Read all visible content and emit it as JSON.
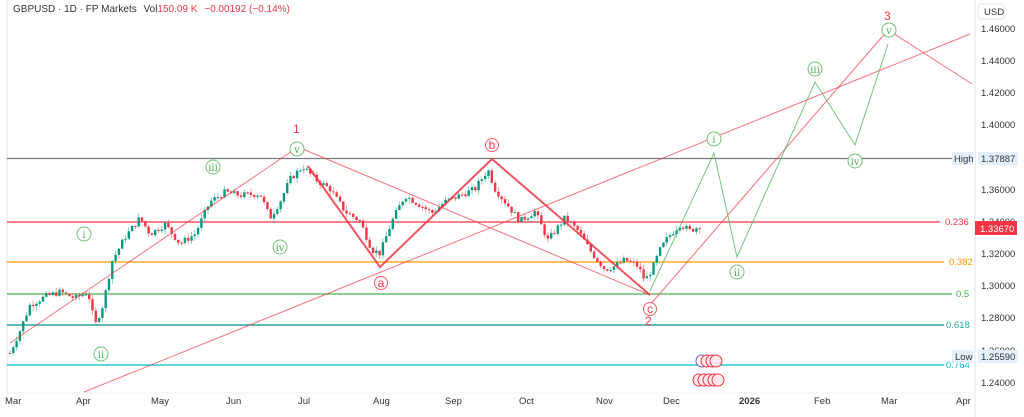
{
  "header": {
    "symbol": "GBPUSD",
    "timeframe": "1D",
    "broker": "FP Markets",
    "vol_label": "Vol",
    "vol_value": "150.09 K",
    "change": "−0.00192 (−0.14%)",
    "full": "GBPUSD · 1D · FP Markets"
  },
  "price_axis": {
    "currency": "USD",
    "ticks": [
      "1.46000",
      "1.44000",
      "1.42000",
      "1.40000",
      "1.36000",
      "1.34000",
      "1.32000",
      "1.30000",
      "1.28000",
      "1.26000",
      "1.24000"
    ],
    "high_label": "High",
    "high_value": "1.37887",
    "low_label": "Low",
    "low_value": "1.25590",
    "last_price": "1.33670"
  },
  "time_axis": {
    "ticks": [
      "Mar",
      "Apr",
      "May",
      "Jun",
      "Jul",
      "Aug",
      "Sep",
      "Oct",
      "Nov",
      "Dec",
      "2026",
      "Feb",
      "Mar",
      "Apr"
    ]
  },
  "fib_levels": [
    {
      "label": "0.236",
      "price": 1.34,
      "color": "#f23645"
    },
    {
      "label": "0.382",
      "price": 1.315,
      "color": "#ff9800"
    },
    {
      "label": "0.5",
      "price": 1.296,
      "color": "#4caf50"
    },
    {
      "label": "0.618",
      "price": 1.276,
      "color": "#26a69a"
    },
    {
      "label": "0.764",
      "price": 1.251,
      "color": "#00bcd4"
    }
  ],
  "wave_labels": {
    "primary": [
      "1",
      "2",
      "3"
    ],
    "corrective": [
      "a",
      "b",
      "c"
    ],
    "minor": [
      "i",
      "ii",
      "iii",
      "iv",
      "v"
    ]
  },
  "colors": {
    "up": "#089981",
    "down": "#f23645",
    "wave_green": "#4caf50",
    "wave_red": "#f23645",
    "high_line": "#787b86"
  },
  "chart_data": {
    "type": "candlestick",
    "title": "GBPUSD · 1D · FP Markets",
    "xlabel": "",
    "ylabel": "USD",
    "ylim": [
      1.232,
      1.475
    ],
    "x_ticks": [
      "Mar",
      "Apr",
      "May",
      "Jun",
      "Jul",
      "Aug",
      "Sep",
      "Oct",
      "Nov",
      "Dec",
      "2026",
      "Feb",
      "Mar",
      "Apr"
    ],
    "y_ticks": [
      1.24,
      1.26,
      1.28,
      1.3,
      1.32,
      1.34,
      1.36,
      1.38,
      1.4,
      1.42,
      1.44,
      1.46
    ],
    "high": 1.37887,
    "low": 1.2559,
    "last": 1.3367,
    "approx_closes": [
      {
        "date": "Mar",
        "price": 1.258
      },
      {
        "date": "Apr",
        "price": 1.292
      },
      {
        "date": "Apr mid",
        "price": 1.275
      },
      {
        "date": "May",
        "price": 1.335
      },
      {
        "date": "Jun",
        "price": 1.355
      },
      {
        "date": "Jul",
        "price": 1.376
      },
      {
        "date": "Aug",
        "price": 1.315
      },
      {
        "date": "Sep",
        "price": 1.355
      },
      {
        "date": "Sep end",
        "price": 1.37
      },
      {
        "date": "Oct",
        "price": 1.34
      },
      {
        "date": "Nov",
        "price": 1.31
      },
      {
        "date": "Nov mid",
        "price": 1.305
      },
      {
        "date": "Dec",
        "price": 1.337
      }
    ],
    "projection_points": [
      {
        "label": "i",
        "date": "Dec end",
        "price": 1.38
      },
      {
        "label": "ii",
        "date": "Jan",
        "price": 1.318
      },
      {
        "label": "iii",
        "date": "Feb",
        "price": 1.427
      },
      {
        "label": "iv",
        "date": "Feb end",
        "price": 1.388
      },
      {
        "label": "v (3)",
        "date": "Mar",
        "price": 1.46
      }
    ],
    "fibonacci": [
      {
        "ratio": "0.236",
        "price": 1.34
      },
      {
        "ratio": "0.382",
        "price": 1.315
      },
      {
        "ratio": "0.5",
        "price": 1.296
      },
      {
        "ratio": "0.618",
        "price": 1.276
      },
      {
        "ratio": "0.764",
        "price": 1.251
      }
    ]
  }
}
